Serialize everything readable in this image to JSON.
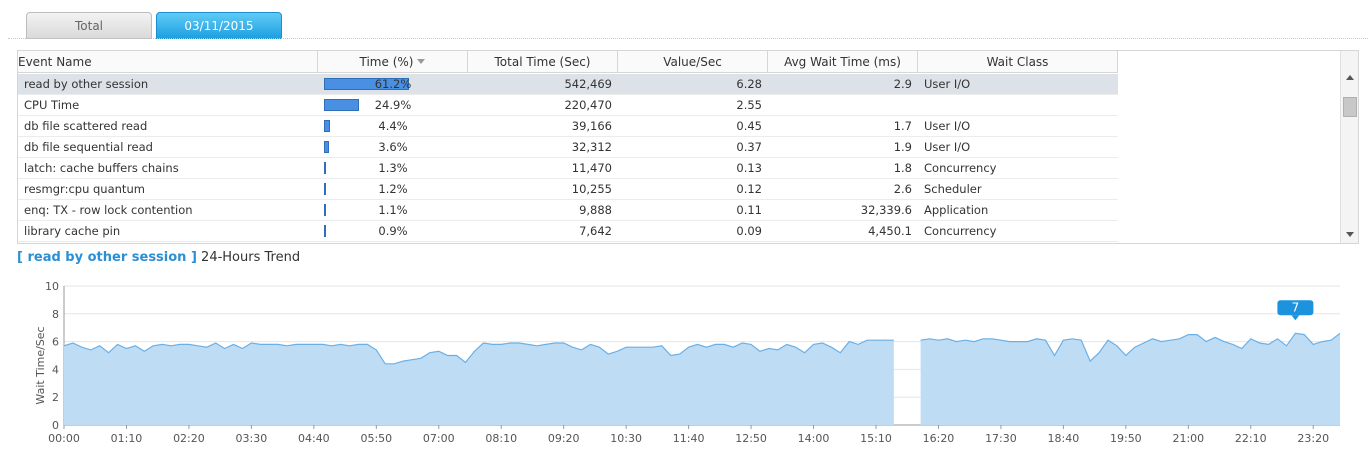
{
  "tabs": [
    {
      "label": "Total",
      "active": false
    },
    {
      "label": "03/11/2015",
      "active": true
    }
  ],
  "grid": {
    "columns": [
      "Event Name",
      "Time (%)",
      "Total Time (Sec)",
      "Value/Sec",
      "Avg Wait Time (ms)",
      "Wait Class"
    ],
    "rows": [
      {
        "name": "read by other session",
        "pct": 61.2,
        "pct_label": "61.2%",
        "total": "542,469",
        "vps": "6.28",
        "avg": "2.9",
        "cls": "User I/O"
      },
      {
        "name": "CPU Time",
        "pct": 24.9,
        "pct_label": "24.9%",
        "total": "220,470",
        "vps": "2.55",
        "avg": "",
        "cls": ""
      },
      {
        "name": "db file scattered read",
        "pct": 4.4,
        "pct_label": "4.4%",
        "total": "39,166",
        "vps": "0.45",
        "avg": "1.7",
        "cls": "User I/O"
      },
      {
        "name": "db file sequential read",
        "pct": 3.6,
        "pct_label": "3.6%",
        "total": "32,312",
        "vps": "0.37",
        "avg": "1.9",
        "cls": "User I/O"
      },
      {
        "name": "latch: cache buffers chains",
        "pct": 1.3,
        "pct_label": "1.3%",
        "total": "11,470",
        "vps": "0.13",
        "avg": "1.8",
        "cls": "Concurrency"
      },
      {
        "name": "resmgr:cpu quantum",
        "pct": 1.2,
        "pct_label": "1.2%",
        "total": "10,255",
        "vps": "0.12",
        "avg": "2.6",
        "cls": "Scheduler"
      },
      {
        "name": "enq: TX - row lock contention",
        "pct": 1.1,
        "pct_label": "1.1%",
        "total": "9,888",
        "vps": "0.11",
        "avg": "32,339.6",
        "cls": "Application"
      },
      {
        "name": "library cache pin",
        "pct": 0.9,
        "pct_label": "0.9%",
        "total": "7,642",
        "vps": "0.09",
        "avg": "4,450.1",
        "cls": "Concurrency"
      }
    ]
  },
  "trend": {
    "selected_event": "[ read by other session ]",
    "title_suffix": "24-Hours Trend"
  },
  "colors": {
    "accent": "#2a8fd4",
    "area_fill": "#bfdcf5",
    "area_line": "#6ab0e6",
    "bar": "#4a90e2"
  },
  "chart_data": {
    "type": "area",
    "ylabel": "Wait Time/Sec",
    "xlabel": "",
    "ylim": [
      0,
      10
    ],
    "yticks": [
      0,
      2,
      4,
      6,
      8,
      10
    ],
    "xticks": [
      "00:00",
      "01:10",
      "02:20",
      "03:30",
      "04:40",
      "05:50",
      "07:00",
      "08:10",
      "09:20",
      "10:30",
      "11:40",
      "12:50",
      "14:00",
      "15:10",
      "16:20",
      "17:30",
      "18:40",
      "19:50",
      "21:00",
      "22:10",
      "23:20"
    ],
    "x_range_minutes": [
      0,
      1430
    ],
    "gap_minutes": [
      936,
      957
    ],
    "tooltip": {
      "minute": 1380,
      "label": "7"
    },
    "points": [
      [
        0,
        5.7
      ],
      [
        10,
        5.9
      ],
      [
        20,
        5.6
      ],
      [
        30,
        5.4
      ],
      [
        40,
        5.7
      ],
      [
        50,
        5.2
      ],
      [
        60,
        5.8
      ],
      [
        70,
        5.5
      ],
      [
        80,
        5.7
      ],
      [
        90,
        5.3
      ],
      [
        100,
        5.7
      ],
      [
        110,
        5.8
      ],
      [
        120,
        5.7
      ],
      [
        130,
        5.8
      ],
      [
        140,
        5.8
      ],
      [
        150,
        5.7
      ],
      [
        160,
        5.6
      ],
      [
        170,
        5.9
      ],
      [
        180,
        5.5
      ],
      [
        190,
        5.8
      ],
      [
        200,
        5.5
      ],
      [
        210,
        5.9
      ],
      [
        220,
        5.8
      ],
      [
        230,
        5.8
      ],
      [
        240,
        5.8
      ],
      [
        250,
        5.7
      ],
      [
        260,
        5.8
      ],
      [
        270,
        5.8
      ],
      [
        280,
        5.8
      ],
      [
        290,
        5.8
      ],
      [
        300,
        5.7
      ],
      [
        310,
        5.8
      ],
      [
        320,
        5.7
      ],
      [
        330,
        5.8
      ],
      [
        340,
        5.8
      ],
      [
        350,
        5.4
      ],
      [
        360,
        4.4
      ],
      [
        370,
        4.4
      ],
      [
        380,
        4.6
      ],
      [
        390,
        4.7
      ],
      [
        400,
        4.8
      ],
      [
        410,
        5.2
      ],
      [
        420,
        5.3
      ],
      [
        430,
        5.0
      ],
      [
        440,
        5.0
      ],
      [
        450,
        4.5
      ],
      [
        460,
        5.3
      ],
      [
        470,
        5.9
      ],
      [
        480,
        5.8
      ],
      [
        490,
        5.8
      ],
      [
        500,
        5.9
      ],
      [
        510,
        5.9
      ],
      [
        520,
        5.8
      ],
      [
        530,
        5.7
      ],
      [
        540,
        5.8
      ],
      [
        550,
        5.9
      ],
      [
        560,
        5.9
      ],
      [
        570,
        5.6
      ],
      [
        580,
        5.4
      ],
      [
        590,
        5.8
      ],
      [
        600,
        5.6
      ],
      [
        610,
        5.1
      ],
      [
        620,
        5.3
      ],
      [
        630,
        5.6
      ],
      [
        640,
        5.6
      ],
      [
        650,
        5.6
      ],
      [
        660,
        5.6
      ],
      [
        670,
        5.7
      ],
      [
        680,
        5.0
      ],
      [
        690,
        5.1
      ],
      [
        700,
        5.6
      ],
      [
        710,
        5.8
      ],
      [
        720,
        5.6
      ],
      [
        730,
        5.8
      ],
      [
        740,
        5.8
      ],
      [
        750,
        5.6
      ],
      [
        760,
        5.9
      ],
      [
        770,
        5.8
      ],
      [
        780,
        5.3
      ],
      [
        790,
        5.5
      ],
      [
        800,
        5.4
      ],
      [
        810,
        5.8
      ],
      [
        820,
        5.6
      ],
      [
        830,
        5.2
      ],
      [
        840,
        5.8
      ],
      [
        850,
        5.9
      ],
      [
        860,
        5.6
      ],
      [
        870,
        5.2
      ],
      [
        880,
        6.0
      ],
      [
        890,
        5.8
      ],
      [
        900,
        6.1
      ],
      [
        910,
        6.1
      ],
      [
        920,
        6.1
      ],
      [
        930,
        6.1
      ],
      [
        960,
        6.1
      ],
      [
        970,
        6.2
      ],
      [
        980,
        6.1
      ],
      [
        990,
        6.2
      ],
      [
        1000,
        6.0
      ],
      [
        1010,
        6.1
      ],
      [
        1020,
        6.0
      ],
      [
        1030,
        6.2
      ],
      [
        1040,
        6.2
      ],
      [
        1050,
        6.1
      ],
      [
        1060,
        6.0
      ],
      [
        1070,
        6.0
      ],
      [
        1080,
        6.0
      ],
      [
        1090,
        6.2
      ],
      [
        1100,
        6.1
      ],
      [
        1110,
        5.0
      ],
      [
        1120,
        6.1
      ],
      [
        1130,
        6.2
      ],
      [
        1140,
        6.1
      ],
      [
        1150,
        4.6
      ],
      [
        1160,
        5.2
      ],
      [
        1170,
        6.1
      ],
      [
        1180,
        5.7
      ],
      [
        1190,
        5.0
      ],
      [
        1200,
        5.6
      ],
      [
        1210,
        5.9
      ],
      [
        1220,
        6.2
      ],
      [
        1230,
        6.0
      ],
      [
        1240,
        6.1
      ],
      [
        1250,
        6.2
      ],
      [
        1260,
        6.5
      ],
      [
        1270,
        6.5
      ],
      [
        1280,
        6.0
      ],
      [
        1290,
        6.3
      ],
      [
        1300,
        6.0
      ],
      [
        1310,
        5.8
      ],
      [
        1320,
        5.5
      ],
      [
        1330,
        6.2
      ],
      [
        1340,
        5.9
      ],
      [
        1350,
        5.8
      ],
      [
        1360,
        6.2
      ],
      [
        1370,
        5.7
      ],
      [
        1380,
        6.6
      ],
      [
        1390,
        6.5
      ],
      [
        1400,
        5.8
      ],
      [
        1410,
        6.0
      ],
      [
        1420,
        6.1
      ],
      [
        1430,
        6.6
      ]
    ]
  }
}
